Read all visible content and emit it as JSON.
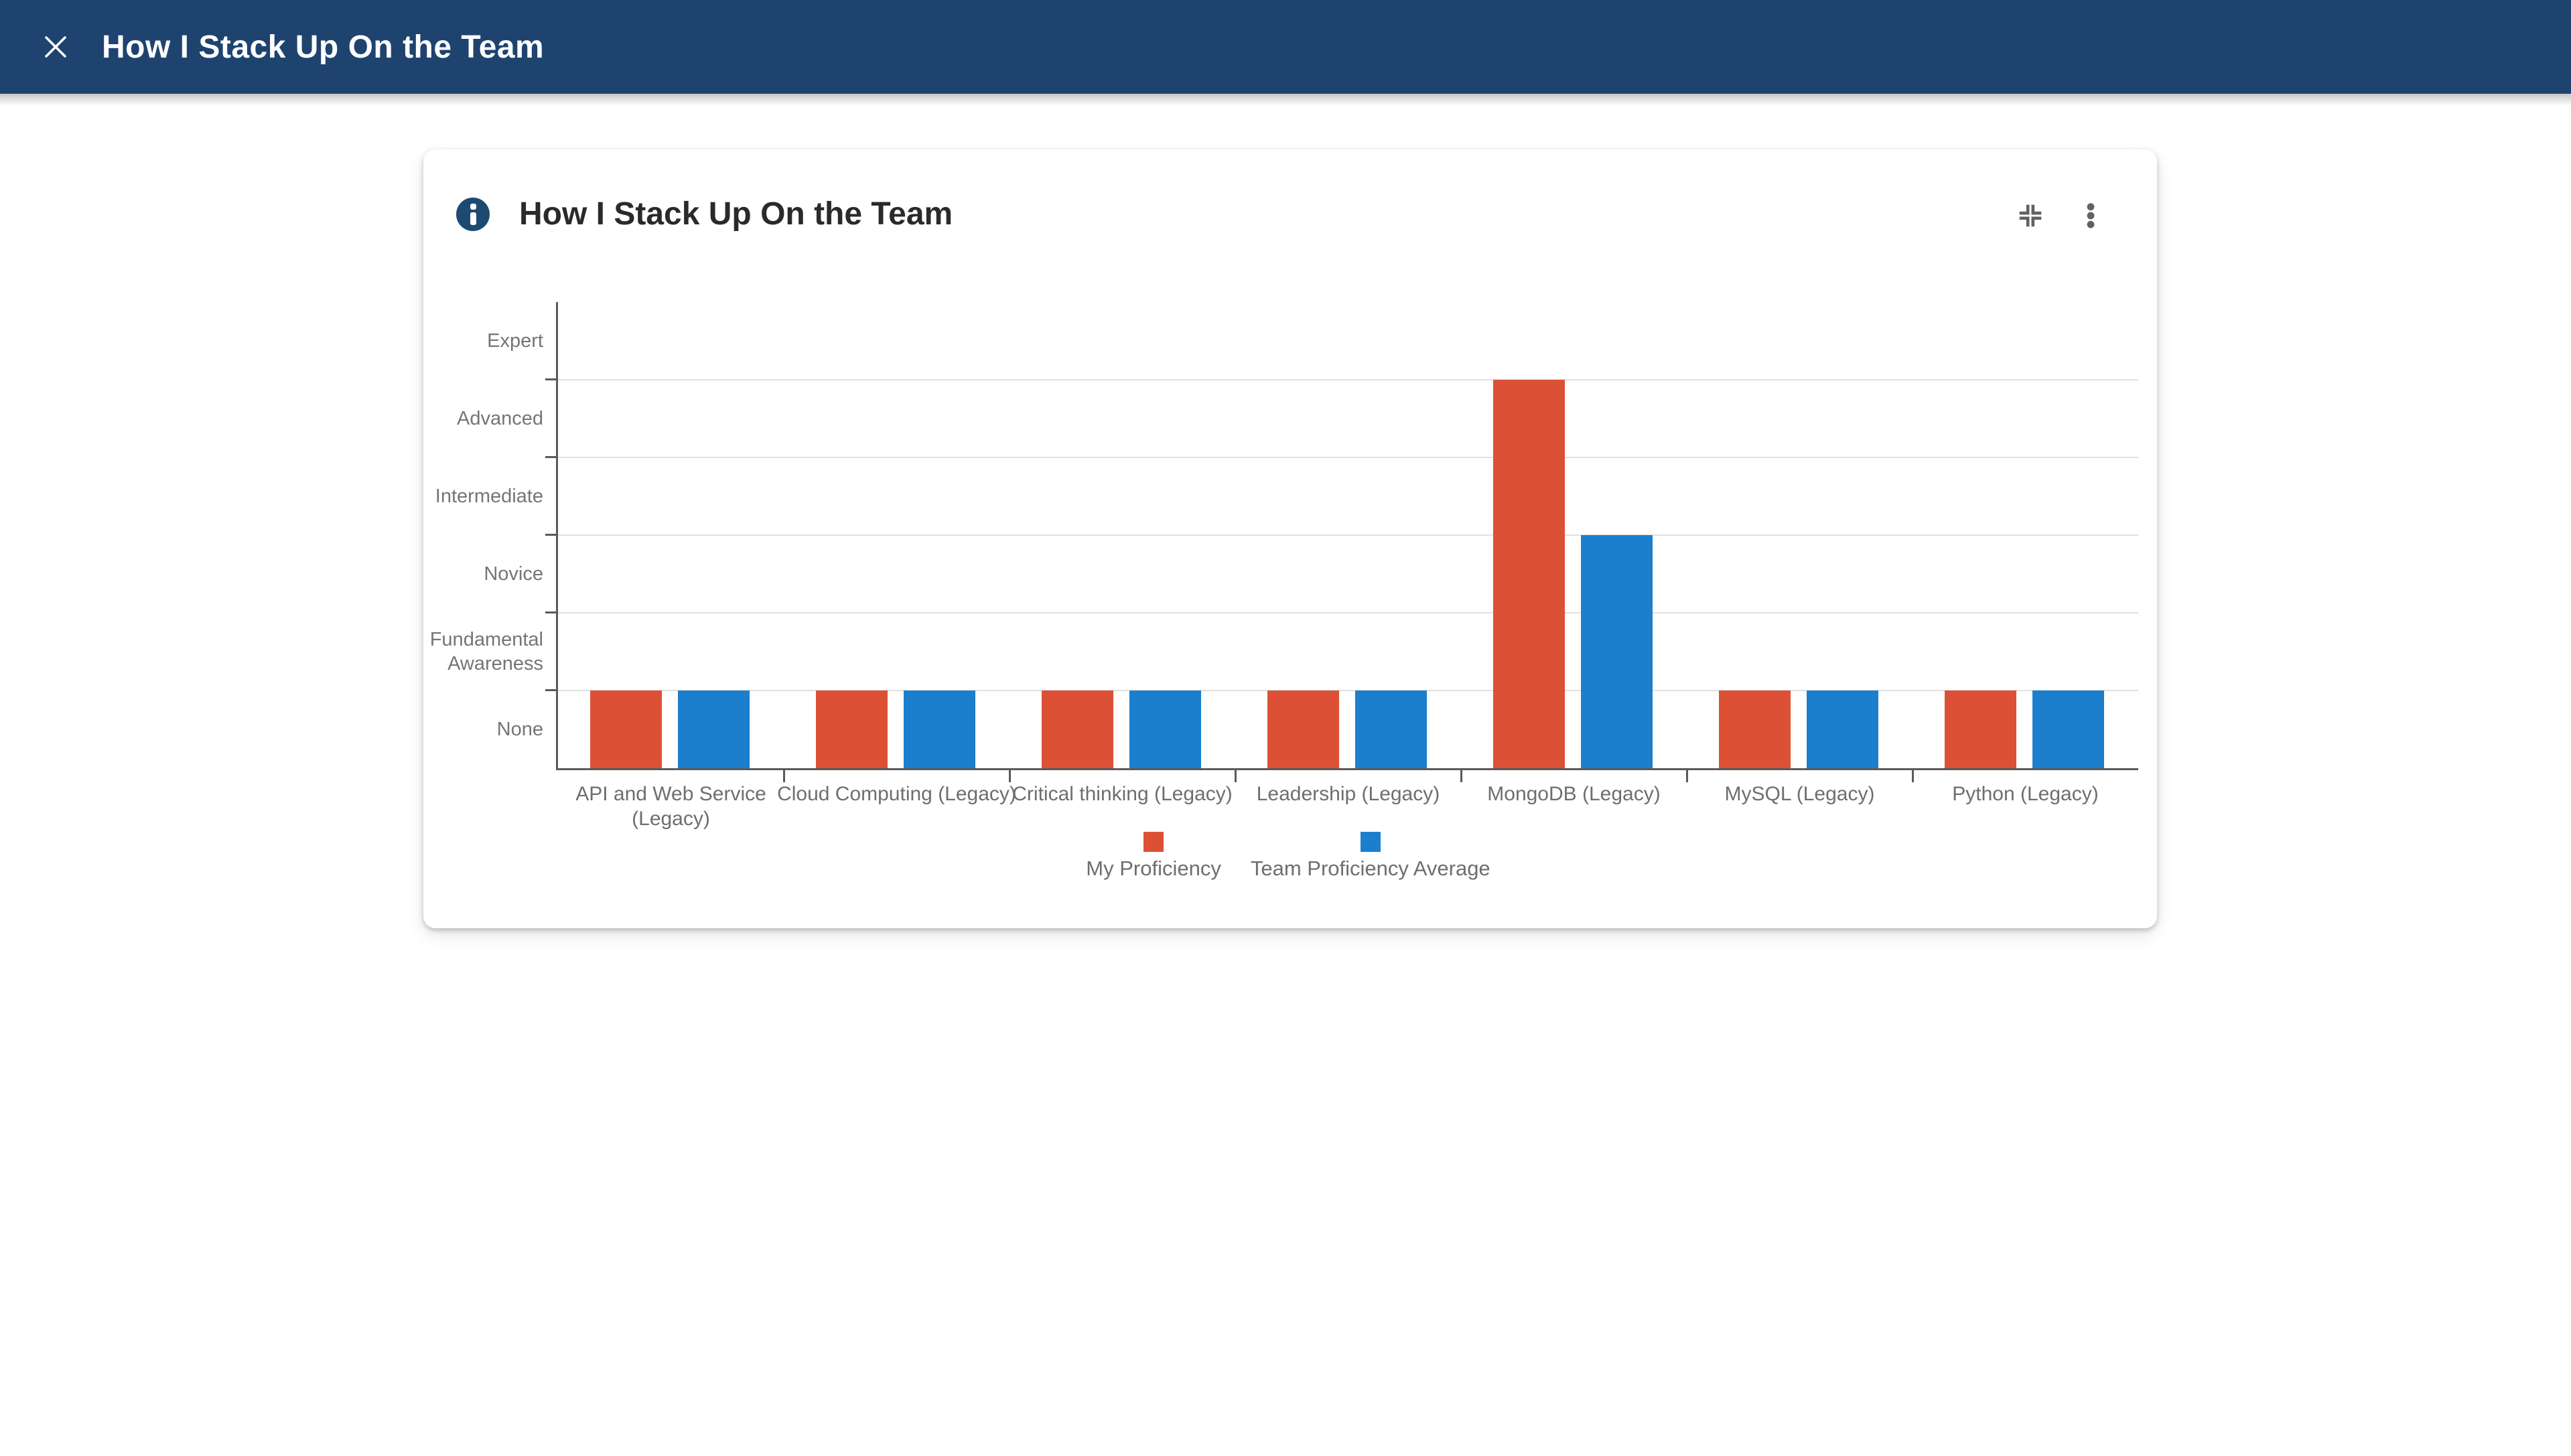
{
  "app_bar": {
    "title": "How I Stack Up On the Team",
    "close_icon": "close-x"
  },
  "card": {
    "title": "How I Stack Up On the Team",
    "info_icon": "info-circle",
    "collapse_icon": "collapse-inward-corners",
    "menu_icon": "vertical-three-dots"
  },
  "colors": {
    "app_bar_bg": "#1e436f",
    "info_badge_bg": "#1e4a72",
    "my_proficiency_red": "#dc5136",
    "team_average_blue": "#1b7fce",
    "axis": "#5a5a5a",
    "gridline": "#e1e1e1",
    "icon_gray": "#616161",
    "title_text": "#2a2a2a",
    "label_gray": "#6e6e6e"
  },
  "chart_data": {
    "type": "bar",
    "title": "How I Stack Up On the Team",
    "xlabel": "",
    "ylabel": "",
    "categories": [
      "API and Web Service (Legacy)",
      "Cloud Computing (Legacy)",
      "Critical thinking (Legacy)",
      "Leadership (Legacy)",
      "MongoDB (Legacy)",
      "MySQL (Legacy)",
      "Python (Legacy)"
    ],
    "y_tick_labels": [
      "None",
      "Fundamental Awareness",
      "Novice",
      "Intermediate",
      "Advanced",
      "Expert"
    ],
    "series": [
      {
        "name": "My Proficiency",
        "color": "#dc5136",
        "values": [
          1,
          1,
          1,
          1,
          5,
          1,
          1
        ]
      },
      {
        "name": "Team Proficiency Average",
        "color": "#1b7fce",
        "values": [
          1,
          1,
          1,
          1,
          3,
          1,
          1
        ]
      }
    ],
    "ylim": [
      0,
      6
    ],
    "grid": true,
    "legend_position": "bottom"
  }
}
